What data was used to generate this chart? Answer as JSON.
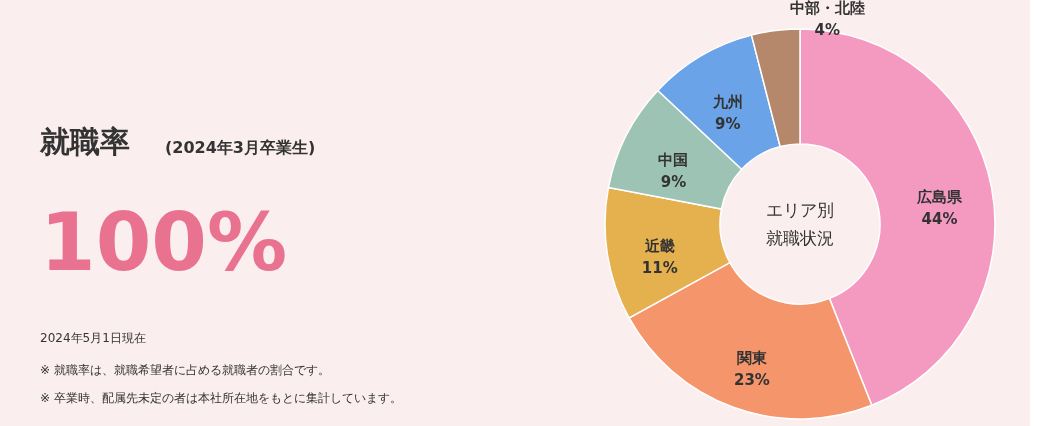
{
  "chart_data": [
    {
      "type": "other",
      "title": "就職率",
      "subtitle": "(2024年3月卒業生)",
      "annotations": [
        "100%",
        "2024年5月1日現在",
        "※ 就職率は、就職希望者に占める就職者の割合です。",
        "※ 卒業時、配属先未定の者は本社所在地をもとに集計しています。"
      ]
    },
    {
      "type": "donut",
      "title": "エリア別",
      "subtitle": "就職状況",
      "categories": [
        "広島県",
        "関東",
        "近畿",
        "中国",
        "九州",
        "中部・北陸"
      ],
      "values": [
        44,
        23,
        11,
        9,
        9,
        4
      ],
      "colors": [
        "#f49ac1",
        "#f5956b",
        "#e5b04e",
        "#9dc3b5",
        "#6aa3e8",
        "#b5876b"
      ],
      "value_labels": [
        "44%",
        "23%",
        "11%",
        "9%",
        "9%",
        "4%"
      ]
    }
  ]
}
